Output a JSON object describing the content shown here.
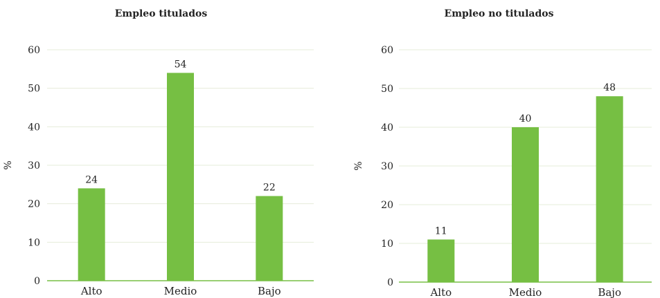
{
  "chart_data": [
    {
      "type": "bar",
      "title": "Empleo titulados",
      "ylabel": "%",
      "xlabel": "",
      "categories": [
        "Alto",
        "Medio",
        "Bajo"
      ],
      "values": [
        24,
        54,
        22
      ],
      "yticks": [
        0,
        10,
        20,
        30,
        40,
        50,
        60
      ],
      "ylim": [
        0,
        60
      ],
      "grid": true,
      "bar_color": "#76bf43"
    },
    {
      "type": "bar",
      "title": "Empleo no titulados",
      "ylabel": "%",
      "xlabel": "",
      "categories": [
        "Alto",
        "Medio",
        "Bajo"
      ],
      "values": [
        11,
        40,
        48
      ],
      "yticks": [
        0,
        10,
        20,
        30,
        40,
        50,
        60
      ],
      "ylim": [
        0,
        60
      ],
      "grid": true,
      "bar_color": "#76bf43"
    }
  ]
}
